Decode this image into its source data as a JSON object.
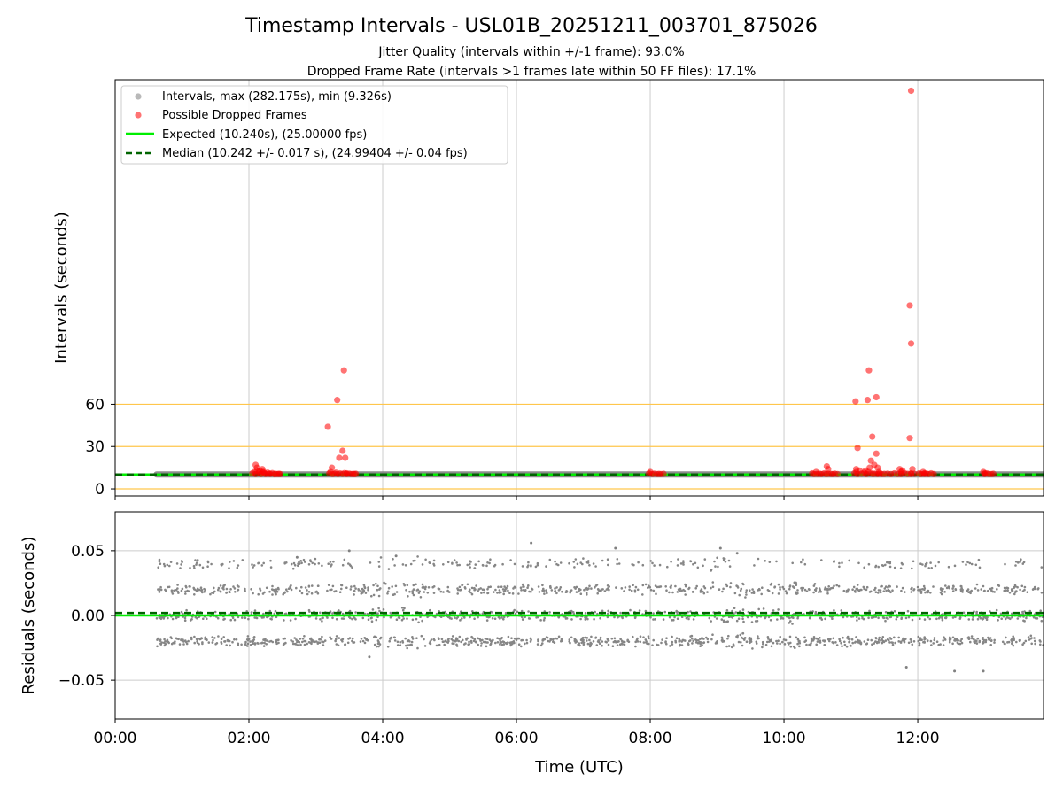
{
  "figure": {
    "title": "Timestamp Intervals - USL01B_20251211_003701_875026",
    "subtitle_1": "Jitter Quality (intervals within +/-1 frame): 93.0%",
    "subtitle_2": "Dropped Frame Rate (intervals >1 frames late within 50 FF files): 17.1%",
    "xlabel": "Time (UTC)"
  },
  "colors": {
    "intervals": "#808080",
    "dropped": "#ff0000",
    "expected": "#00ee00",
    "median": "#006400",
    "reference_lines": "#ffc64c",
    "grid": "#cccccc"
  },
  "chart_data": [
    {
      "type": "scatter",
      "title": "",
      "ylabel": "Intervals (seconds)",
      "x_unit": "hours UTC",
      "xlim": [
        0,
        13.88
      ],
      "ylim": [
        -5,
        290
      ],
      "x_ticks": [
        0,
        2,
        4,
        6,
        8,
        10,
        12
      ],
      "x_tick_labels": [
        "00:00",
        "02:00",
        "04:00",
        "06:00",
        "08:00",
        "10:00",
        "12:00"
      ],
      "y_ticks": [
        0,
        30,
        60
      ],
      "y_tick_labels": [
        "0",
        "30",
        "60"
      ],
      "reference_lines": [
        0,
        30,
        60
      ],
      "grid": true,
      "legend_position": "top-left",
      "legend": [
        "Intervals, max (282.175s), min (9.326s)",
        "Possible Dropped Frames",
        "Expected (10.240s), (25.00000 fps)",
        "Median (10.242 +/- 0.017 s), (24.99404 +/- 0.04 fps)"
      ],
      "expected_value": 10.24,
      "median_value": 10.242,
      "intervals_x_range": [
        0.62,
        13.88
      ],
      "intervals_typical_value": 10.24,
      "dropped_frames": {
        "x": [
          2.05,
          2.08,
          2.1,
          2.12,
          2.15,
          2.18,
          2.2,
          2.23,
          2.25,
          2.28,
          2.3,
          2.32,
          2.35,
          2.38,
          2.4,
          2.43,
          2.45,
          2.47,
          2.1,
          2.12,
          2.2,
          2.22,
          2.16,
          3.2,
          3.22,
          3.25,
          3.28,
          3.3,
          3.33,
          3.36,
          3.4,
          3.43,
          3.46,
          3.5,
          3.53,
          3.56,
          3.58,
          3.6,
          3.18,
          3.24,
          3.35,
          3.4,
          3.44,
          3.32,
          3.42,
          3.46,
          7.98,
          8.0,
          8.03,
          8.06,
          8.1,
          8.13,
          8.16,
          8.2,
          10.42,
          10.45,
          10.48,
          10.5,
          10.53,
          10.56,
          10.6,
          10.63,
          10.66,
          10.7,
          10.73,
          10.76,
          10.8,
          10.64,
          10.66,
          11.05,
          11.08,
          11.1,
          11.13,
          11.16,
          11.2,
          11.23,
          11.26,
          11.3,
          11.33,
          11.36,
          11.4,
          11.43,
          11.46,
          11.5,
          11.55,
          11.6,
          11.65,
          11.7,
          11.75,
          11.8,
          11.85,
          11.9,
          11.95,
          11.08,
          11.1,
          11.22,
          11.28,
          11.3,
          11.35,
          11.38,
          11.4,
          11.42,
          11.73,
          11.75,
          11.77,
          11.88,
          11.9,
          11.92,
          11.07,
          11.25,
          11.27,
          11.32,
          11.38,
          11.88,
          11.9,
          11.9,
          12.02,
          12.05,
          12.08,
          12.1,
          12.13,
          12.16,
          12.2,
          12.24,
          12.1,
          12.98,
          13.0,
          13.03,
          13.06,
          13.1,
          13.13,
          13.0
        ],
        "y": [
          11,
          12,
          10.5,
          13,
          11.5,
          10.5,
          12,
          11,
          10.5,
          11.5,
          10.8,
          10.6,
          11.2,
          10.4,
          10.6,
          10.5,
          10.7,
          10.5,
          17,
          15,
          14,
          12,
          13,
          11,
          12,
          10.5,
          10.8,
          11.5,
          10.5,
          11,
          10.6,
          11.2,
          10.5,
          10.8,
          10.5,
          10.6,
          10.5,
          10.7,
          44,
          15,
          22,
          27,
          22,
          63,
          84,
          11,
          11,
          12,
          10.5,
          10.8,
          10.5,
          10.6,
          10.5,
          10.7,
          11,
          10.5,
          12,
          10.6,
          10.8,
          10.5,
          11,
          10.5,
          10.7,
          10.6,
          10.5,
          10.8,
          10.5,
          16,
          14,
          11,
          12,
          10.5,
          13,
          10.8,
          11.5,
          10.5,
          12,
          11,
          10.6,
          10.8,
          10.5,
          11,
          10.5,
          10.6,
          10.8,
          10.5,
          11,
          10.6,
          10.5,
          11.2,
          10.6,
          10.5,
          10.7,
          14,
          29,
          13,
          15,
          20,
          17,
          25,
          15,
          12,
          14,
          12,
          13,
          36,
          103,
          14,
          62,
          63,
          84,
          37,
          65,
          130,
          282.175,
          11,
          11,
          10.5,
          12,
          10.6,
          10.8,
          10.5,
          11,
          10.5,
          11,
          12,
          10.5,
          11,
          10.6,
          10.5,
          10.7,
          11
        ]
      }
    },
    {
      "type": "scatter",
      "title": "",
      "ylabel": "Residuals (seconds)",
      "xlim": [
        0,
        13.88
      ],
      "ylim": [
        -0.08,
        0.08
      ],
      "y_ticks": [
        -0.05,
        0.0,
        0.05
      ],
      "y_tick_labels": [
        "−0.05",
        "0.00",
        "0.05"
      ],
      "x_ticks": [
        0,
        2,
        4,
        6,
        8,
        10,
        12
      ],
      "x_tick_labels": [
        "00:00",
        "02:00",
        "04:00",
        "06:00",
        "08:00",
        "10:00",
        "12:00"
      ],
      "grid": true,
      "expected_residual": 0.0,
      "median_residual": 0.002,
      "residual_bands": [
        -0.02,
        0.0,
        0.02,
        0.04
      ],
      "residual_x_range": [
        0.62,
        13.88
      ],
      "outliers": {
        "x": [
          6.22,
          7.48,
          9.05,
          4.2,
          3.8,
          11.83,
          12.55,
          12.98,
          3.5,
          9.3,
          2.72
        ],
        "y": [
          0.056,
          0.052,
          0.052,
          0.046,
          -0.032,
          -0.04,
          -0.043,
          -0.043,
          0.05,
          0.048,
          0.045
        ]
      }
    }
  ]
}
